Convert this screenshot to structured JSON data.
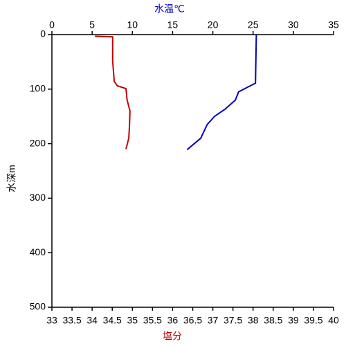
{
  "chart_data": {
    "type": "line",
    "xlabel": "塩分",
    "x2label": "水温℃",
    "ylabel": "水深m",
    "xlim": [
      33,
      40
    ],
    "xticks": [
      33,
      33.5,
      34,
      34.5,
      35,
      35.5,
      36,
      36.5,
      37,
      37.5,
      38,
      38.5,
      39,
      39.5,
      40
    ],
    "x2lim": [
      0,
      35
    ],
    "x2ticks": [
      0,
      5,
      10,
      15,
      20,
      25,
      30,
      35
    ],
    "ylim": [
      0,
      500
    ],
    "yticks": [
      0,
      100,
      200,
      300,
      400,
      500
    ],
    "y_inverted": true,
    "series": [
      {
        "color": "#0000c0",
        "axis": "x2",
        "x": [
          25.4,
          25.3,
          23.2,
          22.8,
          21.5,
          20.2,
          19.3,
          18.5,
          16.8
        ],
        "values": [
          0,
          89,
          105,
          120,
          137,
          150,
          165,
          190,
          211
        ]
      },
      {
        "color": "#c00000",
        "axis": "x",
        "x": [
          34.07,
          34.51,
          34.51,
          34.55,
          34.63,
          34.84,
          34.87,
          34.94,
          34.93,
          34.91,
          34.84
        ],
        "values": [
          3,
          4,
          48,
          86,
          94,
          99,
          120,
          140,
          165,
          190,
          210
        ]
      }
    ]
  }
}
